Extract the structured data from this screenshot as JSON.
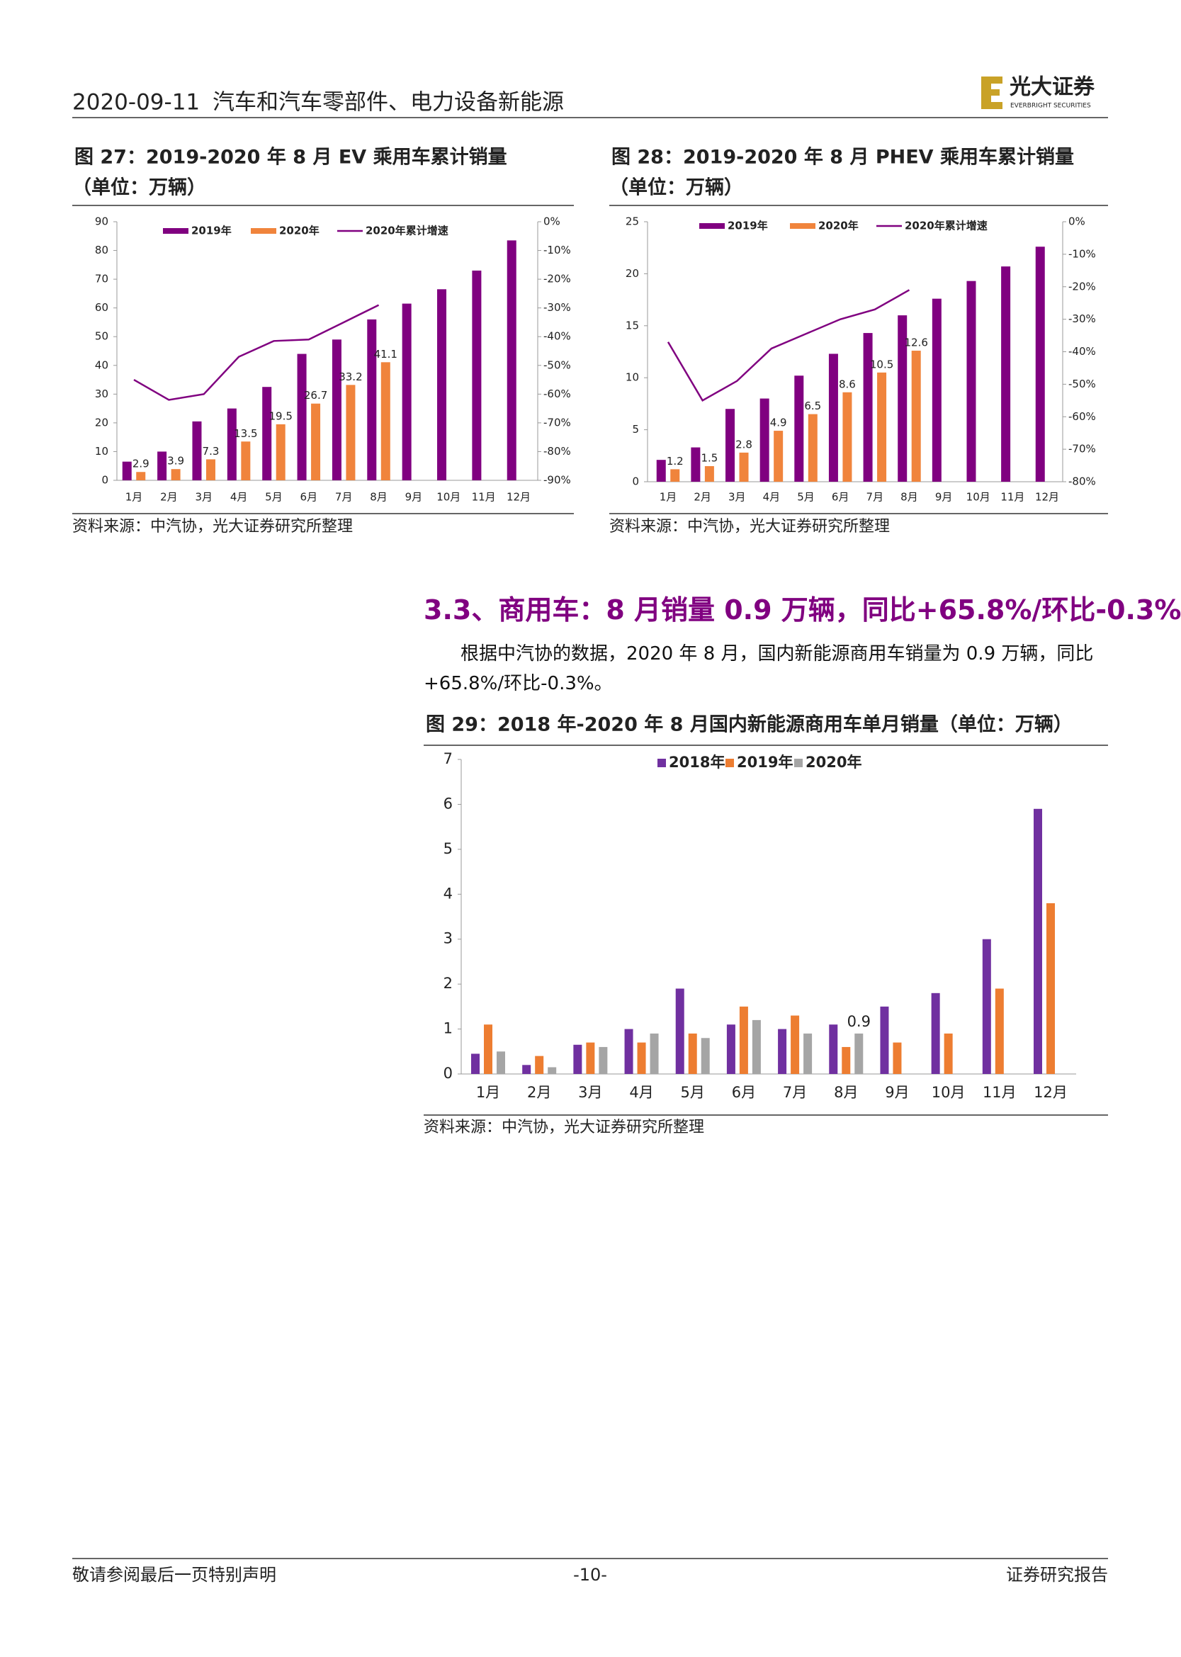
{
  "header": {
    "date": "2020-09-11",
    "title": "汽车和汽车零部件、电力设备新能源",
    "logo": "光大证券",
    "logo_en": "EVERBRIGHT SECURITIES"
  },
  "section": {
    "heading": "3.3、商用车：8 月销量 0.9 万辆，同比+65.8%/环比-0.3%",
    "paragraph": "根据中汽协的数据，2020 年 8 月，国内新能源商用车销量为 0.9 万辆，同比+65.8%/环比-0.3%。"
  },
  "chart_data": [
    {
      "type": "bar",
      "title": "图 27：2019-2020 年 8 月 EV 乘用车累计销量",
      "subtitle": "（单位：万辆）",
      "source": "资料来源：中汽协，光大证券研究所整理",
      "categories": [
        "1月",
        "2月",
        "3月",
        "4月",
        "5月",
        "6月",
        "7月",
        "8月",
        "9月",
        "10月",
        "11月",
        "12月"
      ],
      "series": [
        {
          "name": "2019年",
          "color": "#800080",
          "values": [
            6.5,
            10,
            20.5,
            25,
            32.5,
            44,
            49,
            56,
            61.5,
            66.5,
            73,
            83.5
          ]
        },
        {
          "name": "2020年",
          "color": "#f0843c",
          "data_labels": true,
          "values": [
            2.9,
            3.9,
            7.3,
            13.5,
            19.5,
            26.7,
            33.2,
            41.1,
            null,
            null,
            null,
            null
          ]
        },
        {
          "name": "2020年累计增速",
          "color": "#800080",
          "type": "line",
          "axis": "y2",
          "values": [
            -55,
            -62,
            -60,
            -47,
            -41.5,
            -41,
            -35,
            -29,
            null,
            null,
            null,
            null
          ]
        }
      ],
      "ylim": [
        0,
        90
      ],
      "yticks": [
        0,
        10,
        20,
        30,
        40,
        50,
        60,
        70,
        80,
        90
      ],
      "y2lim": [
        -90,
        0
      ],
      "y2ticks": [
        {
          "value": 0,
          "label": "0%"
        },
        {
          "value": -10,
          "label": "-10%"
        },
        {
          "value": -20,
          "label": "-20%"
        },
        {
          "value": -30,
          "label": "-30%"
        },
        {
          "value": -40,
          "label": "-40%"
        },
        {
          "value": -50,
          "label": "-50%"
        },
        {
          "value": -60,
          "label": "-60%"
        },
        {
          "value": -70,
          "label": "-70%"
        },
        {
          "value": -80,
          "label": "-80%"
        },
        {
          "value": -90,
          "label": "-90%"
        }
      ],
      "legend": "top",
      "grid": false
    },
    {
      "type": "bar",
      "title": "图 28：2019-2020 年 8 月 PHEV 乘用车累计销量",
      "subtitle": "（单位：万辆）",
      "source": "资料来源：中汽协，光大证券研究所整理",
      "categories": [
        "1月",
        "2月",
        "3月",
        "4月",
        "5月",
        "6月",
        "7月",
        "8月",
        "9月",
        "10月",
        "11月",
        "12月"
      ],
      "series": [
        {
          "name": "2019年",
          "color": "#800080",
          "values": [
            2.1,
            3.3,
            7,
            8,
            10.2,
            12.3,
            14.3,
            16,
            17.6,
            19.3,
            20.7,
            22.6
          ]
        },
        {
          "name": "2020年",
          "color": "#f0843c",
          "data_labels": true,
          "values": [
            1.2,
            1.5,
            2.8,
            4.9,
            6.5,
            8.6,
            10.5,
            12.6,
            null,
            null,
            null,
            null
          ]
        },
        {
          "name": "2020年累计增速",
          "color": "#800080",
          "type": "line",
          "axis": "y2",
          "values": [
            -37,
            -55,
            -49,
            -39,
            -34.5,
            -30,
            -27,
            -21,
            null,
            null,
            null,
            null
          ]
        }
      ],
      "ylim": [
        0,
        25
      ],
      "yticks": [
        0,
        5,
        10,
        15,
        20,
        25
      ],
      "y2lim": [
        -80,
        0
      ],
      "y2ticks": [
        {
          "value": 0,
          "label": "0%"
        },
        {
          "value": -10,
          "label": "-10%"
        },
        {
          "value": -20,
          "label": "-20%"
        },
        {
          "value": -30,
          "label": "-30%"
        },
        {
          "value": -40,
          "label": "-40%"
        },
        {
          "value": -50,
          "label": "-50%"
        },
        {
          "value": -60,
          "label": "-60%"
        },
        {
          "value": -70,
          "label": "-70%"
        },
        {
          "value": -80,
          "label": "-80%"
        }
      ],
      "legend": "top",
      "grid": false
    },
    {
      "type": "bar",
      "title": "图 29：2018 年-2020 年 8 月国内新能源商用车单月销量（单位：万辆）",
      "source": "资料来源：中汽协，光大证券研究所整理",
      "categories": [
        "1月",
        "2月",
        "3月",
        "4月",
        "5月",
        "6月",
        "7月",
        "8月",
        "9月",
        "10月",
        "11月",
        "12月"
      ],
      "series": [
        {
          "name": "2018年",
          "color": "#7030a0",
          "values": [
            0.45,
            0.2,
            0.65,
            1.0,
            1.9,
            1.1,
            1.0,
            1.1,
            1.5,
            1.8,
            3.0,
            5.9
          ]
        },
        {
          "name": "2019年",
          "color": "#ed7d31",
          "values": [
            1.1,
            0.4,
            0.7,
            0.7,
            0.9,
            1.5,
            1.3,
            0.6,
            0.7,
            0.9,
            1.9,
            3.8
          ]
        },
        {
          "name": "2020年",
          "color": "#a5a5a5",
          "values": [
            0.5,
            0.15,
            0.6,
            0.9,
            0.8,
            1.2,
            0.9,
            0.9,
            null,
            null,
            null,
            null
          ],
          "value_labels": [
            null,
            null,
            null,
            null,
            null,
            null,
            null,
            "0.9",
            null,
            null,
            null,
            null
          ]
        }
      ],
      "ylim": [
        0,
        7
      ],
      "yticks": [
        0,
        1,
        2,
        3,
        4,
        5,
        6,
        7
      ],
      "legend": "top",
      "grid": false
    }
  ],
  "footer": {
    "left": "敬请参阅最后一页特别声明",
    "center": "-10-",
    "right": "证券研究报告"
  }
}
